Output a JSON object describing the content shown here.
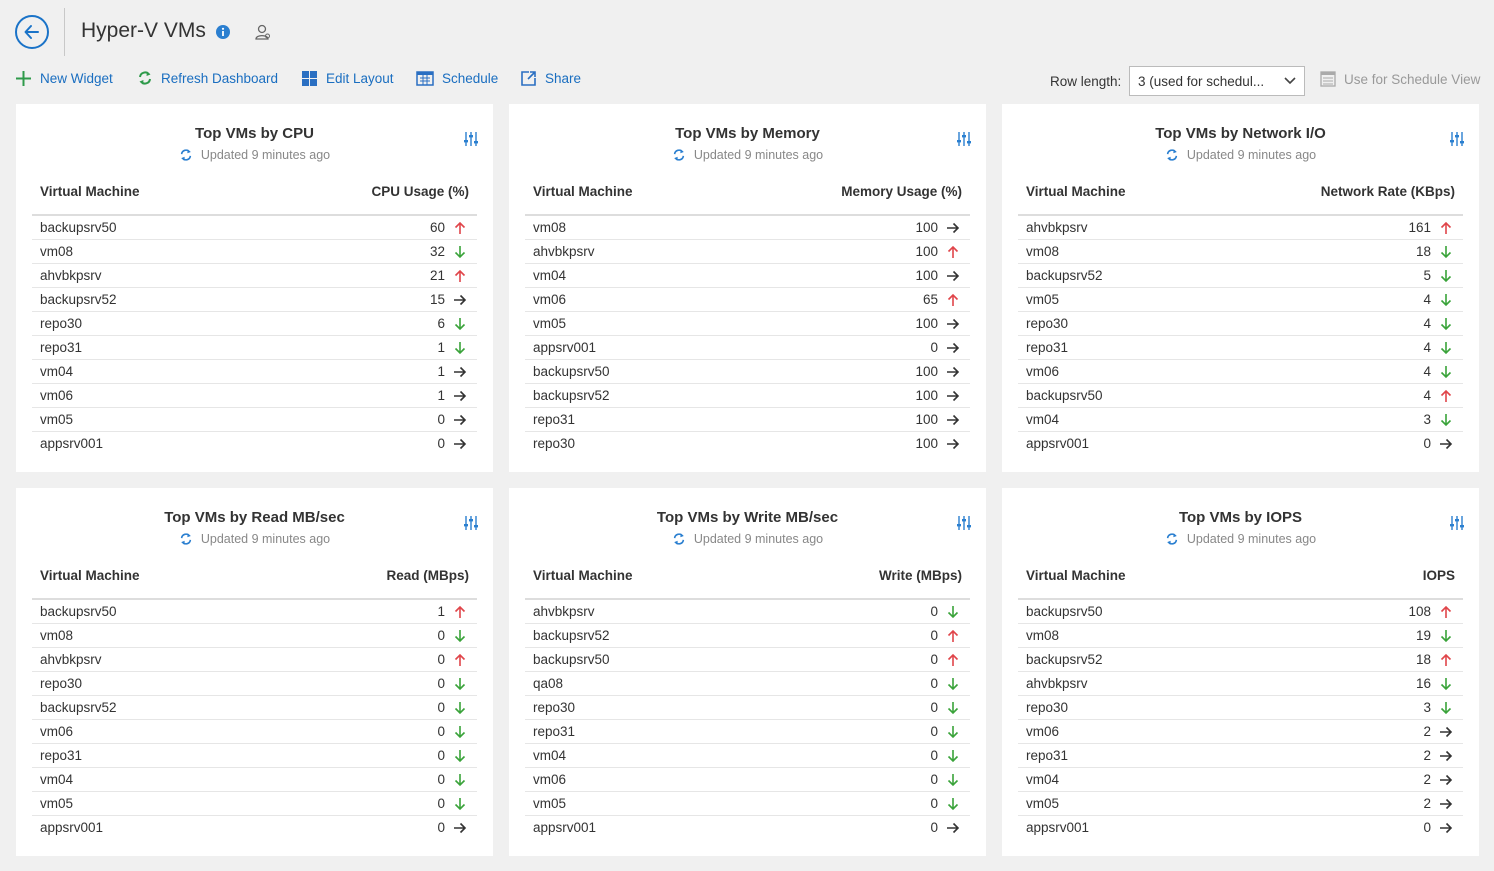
{
  "header": {
    "title": "Hyper-V VMs"
  },
  "toolbar": {
    "new_widget": "New Widget",
    "refresh": "Refresh Dashboard",
    "edit_layout": "Edit Layout",
    "schedule": "Schedule",
    "share": "Share",
    "row_length_label": "Row length:",
    "row_length_value": "3 (used for schedul...",
    "use_schedule_view": "Use for Schedule View"
  },
  "colors": {
    "accent": "#1a73c8",
    "up": "#e0454a",
    "down": "#3aa33a",
    "flat": "#333333"
  },
  "widgets": [
    {
      "title": "Top VMs by CPU",
      "updated": "Updated 9 minutes ago",
      "col1": "Virtual Machine",
      "col2": "CPU Usage (%)",
      "rows": [
        {
          "name": "backupsrv50",
          "value": "60",
          "trend": "up"
        },
        {
          "name": "vm08",
          "value": "32",
          "trend": "down"
        },
        {
          "name": "ahvbkpsrv",
          "value": "21",
          "trend": "up"
        },
        {
          "name": "backupsrv52",
          "value": "15",
          "trend": "flat"
        },
        {
          "name": "repo30",
          "value": "6",
          "trend": "down"
        },
        {
          "name": "repo31",
          "value": "1",
          "trend": "down"
        },
        {
          "name": "vm04",
          "value": "1",
          "trend": "flat"
        },
        {
          "name": "vm06",
          "value": "1",
          "trend": "flat"
        },
        {
          "name": "vm05",
          "value": "0",
          "trend": "flat"
        },
        {
          "name": "appsrv001",
          "value": "0",
          "trend": "flat"
        }
      ]
    },
    {
      "title": "Top VMs by Memory",
      "updated": "Updated 9 minutes ago",
      "col1": "Virtual Machine",
      "col2": "Memory Usage (%)",
      "rows": [
        {
          "name": "vm08",
          "value": "100",
          "trend": "flat"
        },
        {
          "name": "ahvbkpsrv",
          "value": "100",
          "trend": "up"
        },
        {
          "name": "vm04",
          "value": "100",
          "trend": "flat"
        },
        {
          "name": "vm06",
          "value": "65",
          "trend": "up"
        },
        {
          "name": "vm05",
          "value": "100",
          "trend": "flat"
        },
        {
          "name": "appsrv001",
          "value": "0",
          "trend": "flat"
        },
        {
          "name": "backupsrv50",
          "value": "100",
          "trend": "flat"
        },
        {
          "name": "backupsrv52",
          "value": "100",
          "trend": "flat"
        },
        {
          "name": "repo31",
          "value": "100",
          "trend": "flat"
        },
        {
          "name": "repo30",
          "value": "100",
          "trend": "flat"
        }
      ]
    },
    {
      "title": "Top VMs by Network I/O",
      "updated": "Updated 9 minutes ago",
      "col1": "Virtual Machine",
      "col2": "Network Rate (KBps)",
      "rows": [
        {
          "name": "ahvbkpsrv",
          "value": "161",
          "trend": "up"
        },
        {
          "name": "vm08",
          "value": "18",
          "trend": "down"
        },
        {
          "name": "backupsrv52",
          "value": "5",
          "trend": "down"
        },
        {
          "name": "vm05",
          "value": "4",
          "trend": "down"
        },
        {
          "name": "repo30",
          "value": "4",
          "trend": "down"
        },
        {
          "name": "repo31",
          "value": "4",
          "trend": "down"
        },
        {
          "name": "vm06",
          "value": "4",
          "trend": "down"
        },
        {
          "name": "backupsrv50",
          "value": "4",
          "trend": "up"
        },
        {
          "name": "vm04",
          "value": "3",
          "trend": "down"
        },
        {
          "name": "appsrv001",
          "value": "0",
          "trend": "flat"
        }
      ]
    },
    {
      "title": "Top VMs by Read MB/sec",
      "updated": "Updated 9 minutes ago",
      "col1": "Virtual Machine",
      "col2": "Read (MBps)",
      "rows": [
        {
          "name": "backupsrv50",
          "value": "1",
          "trend": "up"
        },
        {
          "name": "vm08",
          "value": "0",
          "trend": "down"
        },
        {
          "name": "ahvbkpsrv",
          "value": "0",
          "trend": "up"
        },
        {
          "name": "repo30",
          "value": "0",
          "trend": "down"
        },
        {
          "name": "backupsrv52",
          "value": "0",
          "trend": "down"
        },
        {
          "name": "vm06",
          "value": "0",
          "trend": "down"
        },
        {
          "name": "repo31",
          "value": "0",
          "trend": "down"
        },
        {
          "name": "vm04",
          "value": "0",
          "trend": "down"
        },
        {
          "name": "vm05",
          "value": "0",
          "trend": "down"
        },
        {
          "name": "appsrv001",
          "value": "0",
          "trend": "flat"
        }
      ]
    },
    {
      "title": "Top VMs by Write MB/sec",
      "updated": "Updated 9 minutes ago",
      "col1": "Virtual Machine",
      "col2": "Write (MBps)",
      "rows": [
        {
          "name": "ahvbkpsrv",
          "value": "0",
          "trend": "down"
        },
        {
          "name": "backupsrv52",
          "value": "0",
          "trend": "up"
        },
        {
          "name": "backupsrv50",
          "value": "0",
          "trend": "up"
        },
        {
          "name": "qa08",
          "value": "0",
          "trend": "down"
        },
        {
          "name": "repo30",
          "value": "0",
          "trend": "down"
        },
        {
          "name": "repo31",
          "value": "0",
          "trend": "down"
        },
        {
          "name": "vm04",
          "value": "0",
          "trend": "down"
        },
        {
          "name": "vm06",
          "value": "0",
          "trend": "down"
        },
        {
          "name": "vm05",
          "value": "0",
          "trend": "down"
        },
        {
          "name": "appsrv001",
          "value": "0",
          "trend": "flat"
        }
      ]
    },
    {
      "title": "Top VMs by IOPS",
      "updated": "Updated 9 minutes ago",
      "col1": "Virtual Machine",
      "col2": "IOPS",
      "rows": [
        {
          "name": "backupsrv50",
          "value": "108",
          "trend": "up"
        },
        {
          "name": "vm08",
          "value": "19",
          "trend": "down"
        },
        {
          "name": "backupsrv52",
          "value": "18",
          "trend": "up"
        },
        {
          "name": "ahvbkpsrv",
          "value": "16",
          "trend": "down"
        },
        {
          "name": "repo30",
          "value": "3",
          "trend": "down"
        },
        {
          "name": "vm06",
          "value": "2",
          "trend": "flat"
        },
        {
          "name": "repo31",
          "value": "2",
          "trend": "flat"
        },
        {
          "name": "vm04",
          "value": "2",
          "trend": "flat"
        },
        {
          "name": "vm05",
          "value": "2",
          "trend": "flat"
        },
        {
          "name": "appsrv001",
          "value": "0",
          "trend": "flat"
        }
      ]
    }
  ]
}
